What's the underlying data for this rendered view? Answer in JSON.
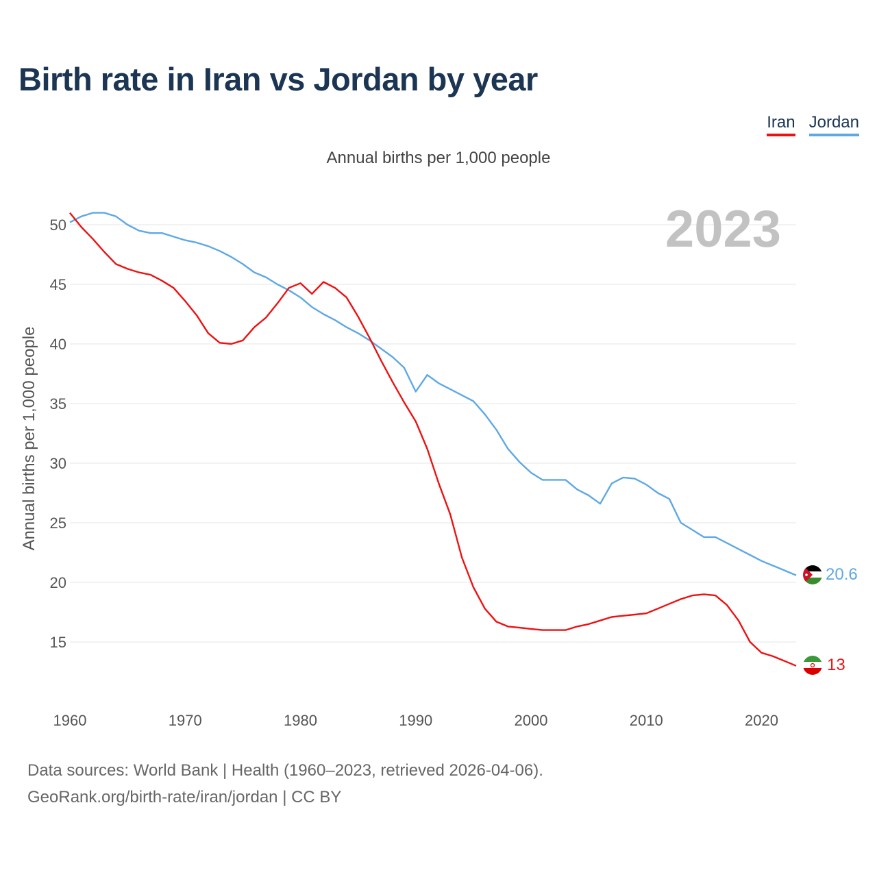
{
  "header": {
    "title": "Birth rate in Iran vs Jordan by year",
    "subtitle": "Annual births per 1,000 people"
  },
  "legend": {
    "iran": "Iran",
    "jordan": "Jordan"
  },
  "colors": {
    "iran": "#ee1111",
    "jordan": "#5ea8e6",
    "title": "#1b3553"
  },
  "footer": {
    "line1": "Data sources: World Bank | Health (1960–2023, retrieved 2026-04-06).",
    "line2": "GeoRank.org/birth-rate/iran/jordan | CC BY"
  },
  "chart_data": {
    "type": "line",
    "title": "Birth rate in Iran vs Jordan by year",
    "subtitle": "Annual births per 1,000 people",
    "xlabel": "",
    "ylabel": "Annual births per 1,000 people",
    "year_label": "2023",
    "xlim": [
      1960,
      2023
    ],
    "ylim": [
      10.5,
      53
    ],
    "x_ticks": [
      1960,
      1970,
      1980,
      1990,
      2000,
      2010,
      2020
    ],
    "y_ticks": [
      15,
      20,
      25,
      30,
      35,
      40,
      45,
      50
    ],
    "grid": true,
    "legend_position": "top-right",
    "x": [
      1960,
      1961,
      1962,
      1963,
      1964,
      1965,
      1966,
      1967,
      1968,
      1969,
      1970,
      1971,
      1972,
      1973,
      1974,
      1975,
      1976,
      1977,
      1978,
      1979,
      1980,
      1981,
      1982,
      1983,
      1984,
      1985,
      1986,
      1987,
      1988,
      1989,
      1990,
      1991,
      1992,
      1993,
      1994,
      1995,
      1996,
      1997,
      1998,
      1999,
      2000,
      2001,
      2002,
      2003,
      2004,
      2005,
      2006,
      2007,
      2008,
      2009,
      2010,
      2011,
      2012,
      2013,
      2014,
      2015,
      2016,
      2017,
      2018,
      2019,
      2020,
      2021,
      2022,
      2023
    ],
    "series": [
      {
        "name": "Iran",
        "end_label": "13",
        "values": [
          51.0,
          49.8,
          48.8,
          47.7,
          46.7,
          46.3,
          46.0,
          45.8,
          45.3,
          44.7,
          43.6,
          42.4,
          40.9,
          40.1,
          40.0,
          40.3,
          41.4,
          42.2,
          43.4,
          44.7,
          45.1,
          44.2,
          45.2,
          44.7,
          43.9,
          42.3,
          40.5,
          38.6,
          36.8,
          35.1,
          33.5,
          31.2,
          28.3,
          25.7,
          22.1,
          19.6,
          17.8,
          16.7,
          16.3,
          16.2,
          16.1,
          16.0,
          16.0,
          16.0,
          16.3,
          16.5,
          16.8,
          17.1,
          17.2,
          17.3,
          17.4,
          17.8,
          18.2,
          18.6,
          18.9,
          19.0,
          18.9,
          18.1,
          16.8,
          15.0,
          14.1,
          13.8,
          13.4,
          13.0
        ]
      },
      {
        "name": "Jordan",
        "end_label": "20.6",
        "values": [
          50.2,
          50.7,
          51.0,
          51.0,
          50.7,
          50.0,
          49.5,
          49.3,
          49.3,
          49.0,
          48.7,
          48.5,
          48.2,
          47.8,
          47.3,
          46.7,
          46.0,
          45.6,
          45.0,
          44.5,
          43.9,
          43.1,
          42.5,
          42.0,
          41.4,
          40.9,
          40.3,
          39.6,
          38.9,
          38.0,
          36.0,
          37.4,
          36.7,
          36.2,
          35.7,
          35.2,
          34.1,
          32.8,
          31.2,
          30.1,
          29.2,
          28.6,
          28.6,
          28.6,
          27.8,
          27.3,
          26.6,
          28.3,
          28.8,
          28.7,
          28.2,
          27.5,
          27.0,
          25.0,
          24.4,
          23.8,
          23.8,
          23.3,
          22.8,
          22.3,
          21.8,
          21.4,
          21.0,
          20.6
        ]
      }
    ]
  }
}
